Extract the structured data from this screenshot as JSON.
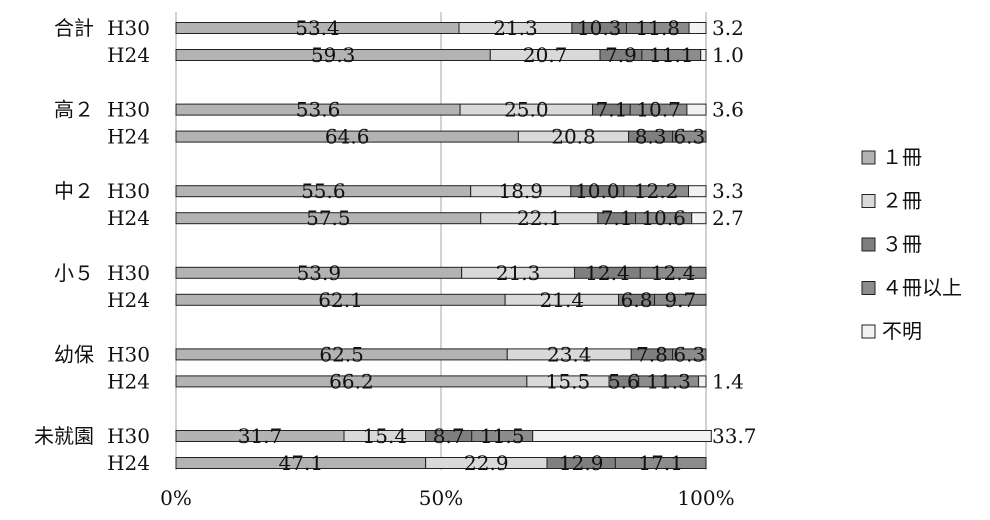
{
  "chart_data": {
    "type": "bar",
    "stacked": true,
    "orientation": "horizontal",
    "x_tick_labels": [
      "0%",
      "50%",
      "100%"
    ],
    "xlim": [
      0,
      100
    ],
    "legend_position": "right",
    "series": [
      {
        "name": "１冊",
        "color": "#b3b3b3"
      },
      {
        "name": "２冊",
        "color": "#d9d9d9"
      },
      {
        "name": "３冊",
        "color": "#7f7f7f"
      },
      {
        "name": "４冊以上",
        "color": "#8c8c8c"
      },
      {
        "name": "不明",
        "color": "#f2f2f2"
      }
    ],
    "groups": [
      {
        "label": "合計",
        "bars": [
          {
            "year": "H30",
            "values": [
              53.4,
              21.3,
              10.3,
              11.8,
              3.2
            ],
            "labels": [
              "53.4",
              "21.3",
              "10.3",
              "11.8",
              "3.2"
            ]
          },
          {
            "year": "H24",
            "values": [
              59.3,
              20.7,
              7.9,
              11.1,
              1.0
            ],
            "labels": [
              "59.3",
              "20.7",
              "7.9",
              "11.1",
              "1.0"
            ]
          }
        ]
      },
      {
        "label": "高２",
        "bars": [
          {
            "year": "H30",
            "values": [
              53.6,
              25.0,
              7.1,
              10.7,
              3.6
            ],
            "labels": [
              "53.6",
              "25.0",
              "7.1",
              "10.7",
              "3.6"
            ]
          },
          {
            "year": "H24",
            "values": [
              64.6,
              20.8,
              8.3,
              6.3,
              0
            ],
            "labels": [
              "64.6",
              "20.8",
              "8.3",
              "6.3",
              ""
            ]
          }
        ]
      },
      {
        "label": "中２",
        "bars": [
          {
            "year": "H30",
            "values": [
              55.6,
              18.9,
              10.0,
              12.2,
              3.3
            ],
            "labels": [
              "55.6",
              "18.9",
              "10.0",
              "12.2",
              "3.3"
            ]
          },
          {
            "year": "H24",
            "values": [
              57.5,
              22.1,
              7.1,
              10.6,
              2.7
            ],
            "labels": [
              "57.5",
              "22.1",
              "7.1",
              "10.6",
              "2.7"
            ]
          }
        ]
      },
      {
        "label": "小５",
        "bars": [
          {
            "year": "H30",
            "values": [
              53.9,
              21.3,
              12.4,
              12.4,
              0
            ],
            "labels": [
              "53.9",
              "21.3",
              "12.4",
              "12.4",
              ""
            ]
          },
          {
            "year": "H24",
            "values": [
              62.1,
              21.4,
              6.8,
              9.7,
              0
            ],
            "labels": [
              "62.1",
              "21.4",
              "6.8",
              "9.7",
              ""
            ]
          }
        ]
      },
      {
        "label": "幼保",
        "bars": [
          {
            "year": "H30",
            "values": [
              62.5,
              23.4,
              7.8,
              6.3,
              0
            ],
            "labels": [
              "62.5",
              "23.4",
              "7.8",
              "6.3",
              ""
            ]
          },
          {
            "year": "H24",
            "values": [
              66.2,
              15.5,
              5.6,
              11.3,
              1.4
            ],
            "labels": [
              "66.2",
              "15.5",
              "5.6",
              "11.3",
              "1.4"
            ]
          }
        ]
      },
      {
        "label": "未就園",
        "bars": [
          {
            "year": "H30",
            "values": [
              31.7,
              15.4,
              8.7,
              11.5,
              33.7
            ],
            "labels": [
              "31.7",
              "15.4",
              "8.7",
              "11.5",
              "33.7"
            ]
          },
          {
            "year": "H24",
            "values": [
              47.1,
              22.9,
              12.9,
              17.1,
              0
            ],
            "labels": [
              "47.1",
              "22.9",
              "12.9",
              "17.1",
              ""
            ]
          }
        ]
      }
    ]
  }
}
